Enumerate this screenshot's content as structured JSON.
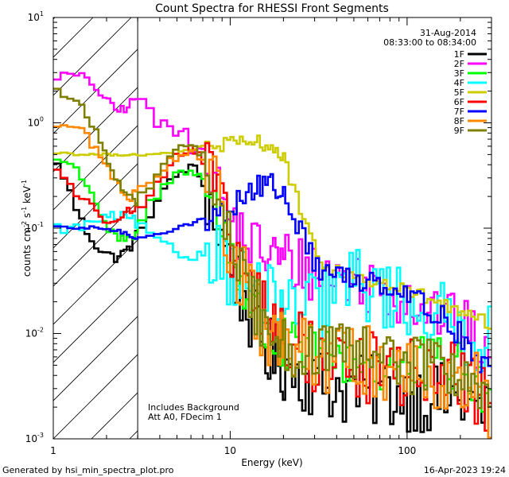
{
  "chart_data": {
    "type": "line",
    "title": "Count Spectra for RHESSI Front Segments",
    "xlabel": "Energy (keV)",
    "ylabel_parts": [
      "counts cm",
      "-2",
      " s",
      "-1",
      " keV",
      "-1"
    ],
    "xscale": "log",
    "yscale": "log",
    "xlim": [
      1,
      300
    ],
    "ylim": [
      0.001,
      10
    ],
    "x_ticks": [
      {
        "value": 1,
        "label": "1"
      },
      {
        "value": 10,
        "label": "10"
      },
      {
        "value": 100,
        "label": "100"
      }
    ],
    "y_ticks": [
      {
        "value": 0.001,
        "base": "10",
        "exp": "-3"
      },
      {
        "value": 0.01,
        "base": "10",
        "exp": "-2"
      },
      {
        "value": 0.1,
        "base": "10",
        "exp": "-1"
      },
      {
        "value": 1,
        "base": "10",
        "exp": "0"
      },
      {
        "value": 10,
        "base": "10",
        "exp": "1"
      }
    ],
    "hatched_region_max_energy": 3,
    "date": "31-Aug-2014",
    "time_range": "08:33:00 to 08:34:00",
    "annotations": [
      "Includes Background",
      "Att A0, FDecim 1"
    ],
    "legend_position": "top-right",
    "series": [
      {
        "name": "1F",
        "color": "#000000",
        "noise": 0.35,
        "values": [
          [
            1.1,
            0.39
          ],
          [
            1.3,
            0.18
          ],
          [
            1.5,
            0.1
          ],
          [
            1.8,
            0.065
          ],
          [
            2.2,
            0.052
          ],
          [
            2.5,
            0.058
          ],
          [
            2.8,
            0.07
          ],
          [
            3.0,
            0.09
          ],
          [
            4.0,
            0.2
          ],
          [
            5.0,
            0.32
          ],
          [
            5.8,
            0.38
          ],
          [
            6.5,
            0.35
          ],
          [
            7.5,
            0.2
          ],
          [
            8.5,
            0.1
          ],
          [
            10,
            0.05
          ],
          [
            11,
            0.03
          ],
          [
            13,
            0.015
          ],
          [
            16,
            0.007
          ],
          [
            20,
            0.005
          ],
          [
            30,
            0.0035
          ],
          [
            40,
            0.003
          ],
          [
            60,
            0.0028
          ],
          [
            90,
            0.0027
          ],
          [
            120,
            0.0025
          ],
          [
            160,
            0.0024
          ],
          [
            220,
            0.0022
          ],
          [
            300,
            0.0015
          ]
        ]
      },
      {
        "name": "2F",
        "color": "#ff00ff",
        "noise": 0.3,
        "values": [
          [
            1.1,
            2.8
          ],
          [
            1.4,
            2.8
          ],
          [
            1.7,
            2.3
          ],
          [
            2.0,
            1.6
          ],
          [
            2.3,
            1.3
          ],
          [
            2.6,
            1.4
          ],
          [
            3.0,
            1.8
          ],
          [
            3.3,
            1.6
          ],
          [
            3.8,
            0.95
          ],
          [
            4.3,
            1.0
          ],
          [
            5.0,
            0.8
          ],
          [
            5.5,
            1.0
          ],
          [
            6.0,
            0.55
          ],
          [
            6.5,
            0.6
          ],
          [
            7.5,
            0.45
          ],
          [
            8.5,
            0.25
          ],
          [
            10,
            0.12
          ],
          [
            12,
            0.08
          ],
          [
            15,
            0.06
          ],
          [
            20,
            0.05
          ],
          [
            30,
            0.04
          ],
          [
            40,
            0.035
          ],
          [
            60,
            0.03
          ],
          [
            80,
            0.026
          ],
          [
            100,
            0.022
          ],
          [
            130,
            0.018
          ],
          [
            160,
            0.015
          ],
          [
            220,
            0.01
          ],
          [
            300,
            0.006
          ]
        ]
      },
      {
        "name": "3F",
        "color": "#00ff00",
        "noise": 0.3,
        "values": [
          [
            1.1,
            0.45
          ],
          [
            1.4,
            0.35
          ],
          [
            1.7,
            0.2
          ],
          [
            2.0,
            0.1
          ],
          [
            2.3,
            0.08
          ],
          [
            2.7,
            0.075
          ],
          [
            3.0,
            0.09
          ],
          [
            3.5,
            0.17
          ],
          [
            4.0,
            0.22
          ],
          [
            5.0,
            0.33
          ],
          [
            6.0,
            0.37
          ],
          [
            7.0,
            0.3
          ],
          [
            8.0,
            0.16
          ],
          [
            9.5,
            0.08
          ],
          [
            11,
            0.04
          ],
          [
            13,
            0.02
          ],
          [
            16,
            0.01
          ],
          [
            20,
            0.007
          ],
          [
            30,
            0.006
          ],
          [
            50,
            0.0055
          ],
          [
            80,
            0.005
          ],
          [
            120,
            0.0048
          ],
          [
            180,
            0.0045
          ],
          [
            250,
            0.0035
          ],
          [
            300,
            0.002
          ]
        ]
      },
      {
        "name": "4F",
        "color": "#00ffff",
        "noise": 0.35,
        "values": [
          [
            1.1,
            0.1
          ],
          [
            1.4,
            0.1
          ],
          [
            1.8,
            0.12
          ],
          [
            2.3,
            0.13
          ],
          [
            2.8,
            0.12
          ],
          [
            3.2,
            0.1
          ],
          [
            4.0,
            0.07
          ],
          [
            5.0,
            0.06
          ],
          [
            6.0,
            0.05
          ],
          [
            7.0,
            0.06
          ],
          [
            8.0,
            0.07
          ],
          [
            9.0,
            0.05
          ],
          [
            10,
            0.04
          ],
          [
            12,
            0.03
          ],
          [
            14,
            0.025
          ],
          [
            17,
            0.02
          ],
          [
            20,
            0.016
          ],
          [
            30,
            0.017
          ],
          [
            40,
            0.025
          ],
          [
            50,
            0.03
          ],
          [
            60,
            0.028
          ],
          [
            80,
            0.022
          ],
          [
            100,
            0.02
          ],
          [
            130,
            0.016
          ],
          [
            170,
            0.013
          ],
          [
            220,
            0.01
          ],
          [
            300,
            0.008
          ]
        ]
      },
      {
        "name": "5F",
        "color": "#cccc00",
        "noise": 0.08,
        "values": [
          [
            1.1,
            0.52
          ],
          [
            1.5,
            0.5
          ],
          [
            2.0,
            0.5
          ],
          [
            2.5,
            0.5
          ],
          [
            3.0,
            0.5
          ],
          [
            4.0,
            0.5
          ],
          [
            5.0,
            0.52
          ],
          [
            6.0,
            0.55
          ],
          [
            7.0,
            0.6
          ],
          [
            8.0,
            0.62
          ],
          [
            10,
            0.62
          ],
          [
            12,
            0.62
          ],
          [
            14,
            0.65
          ],
          [
            16,
            0.64
          ],
          [
            18,
            0.55
          ],
          [
            20,
            0.45
          ],
          [
            22,
            0.3
          ],
          [
            25,
            0.15
          ],
          [
            28,
            0.08
          ],
          [
            32,
            0.05
          ],
          [
            40,
            0.04
          ],
          [
            50,
            0.035
          ],
          [
            70,
            0.03
          ],
          [
            100,
            0.025
          ],
          [
            150,
            0.02
          ],
          [
            200,
            0.015
          ],
          [
            300,
            0.012
          ]
        ]
      },
      {
        "name": "6F",
        "color": "#ff0000",
        "noise": 0.35,
        "values": [
          [
            1.1,
            0.35
          ],
          [
            1.4,
            0.2
          ],
          [
            1.7,
            0.15
          ],
          [
            2.0,
            0.12
          ],
          [
            2.5,
            0.14
          ],
          [
            3.0,
            0.15
          ],
          [
            3.5,
            0.2
          ],
          [
            4.0,
            0.3
          ],
          [
            5.0,
            0.5
          ],
          [
            6.0,
            0.55
          ],
          [
            7.0,
            0.45
          ],
          [
            8.0,
            0.25
          ],
          [
            9.0,
            0.12
          ],
          [
            10,
            0.07
          ],
          [
            12,
            0.04
          ],
          [
            14,
            0.02
          ],
          [
            17,
            0.012
          ],
          [
            20,
            0.009
          ],
          [
            30,
            0.006
          ],
          [
            50,
            0.005
          ],
          [
            80,
            0.0045
          ],
          [
            120,
            0.004
          ],
          [
            180,
            0.0038
          ],
          [
            250,
            0.003
          ],
          [
            300,
            0.002
          ]
        ]
      },
      {
        "name": "7F",
        "color": "#0000ff",
        "noise": 0.12,
        "values": [
          [
            1.1,
            0.1
          ],
          [
            1.3,
            0.1
          ],
          [
            1.6,
            0.1
          ],
          [
            2.0,
            0.1
          ],
          [
            2.5,
            0.09
          ],
          [
            3.0,
            0.08
          ],
          [
            4.0,
            0.09
          ],
          [
            5.0,
            0.1
          ],
          [
            6.0,
            0.11
          ],
          [
            7.0,
            0.12
          ],
          [
            8.0,
            0.13
          ],
          [
            9.0,
            0.14
          ],
          [
            10,
            0.16
          ],
          [
            12,
            0.2
          ],
          [
            14,
            0.24
          ],
          [
            16,
            0.26
          ],
          [
            18,
            0.25
          ],
          [
            20,
            0.2
          ],
          [
            22,
            0.15
          ],
          [
            25,
            0.1
          ],
          [
            28,
            0.06
          ],
          [
            32,
            0.04
          ],
          [
            40,
            0.035
          ],
          [
            50,
            0.033
          ],
          [
            70,
            0.032
          ],
          [
            100,
            0.025
          ],
          [
            150,
            0.015
          ],
          [
            200,
            0.01
          ],
          [
            250,
            0.006
          ],
          [
            300,
            0.004
          ]
        ]
      },
      {
        "name": "8F",
        "color": "#ff8800",
        "noise": 0.35,
        "values": [
          [
            1.1,
            0.95
          ],
          [
            1.4,
            0.9
          ],
          [
            1.7,
            0.6
          ],
          [
            2.0,
            0.4
          ],
          [
            2.3,
            0.25
          ],
          [
            2.7,
            0.2
          ],
          [
            3.0,
            0.22
          ],
          [
            4.0,
            0.35
          ],
          [
            5.0,
            0.5
          ],
          [
            6.0,
            0.55
          ],
          [
            7.0,
            0.48
          ],
          [
            8.0,
            0.25
          ],
          [
            9.0,
            0.12
          ],
          [
            10,
            0.06
          ],
          [
            12,
            0.03
          ],
          [
            14,
            0.015
          ],
          [
            17,
            0.009
          ],
          [
            20,
            0.007
          ],
          [
            30,
            0.006
          ],
          [
            50,
            0.0055
          ],
          [
            80,
            0.005
          ],
          [
            120,
            0.0045
          ],
          [
            180,
            0.004
          ],
          [
            250,
            0.003
          ],
          [
            300,
            0.002
          ]
        ]
      },
      {
        "name": "9F",
        "color": "#808000",
        "noise": 0.3,
        "values": [
          [
            1.1,
            2.0
          ],
          [
            1.4,
            1.5
          ],
          [
            1.7,
            0.9
          ],
          [
            2.0,
            0.5
          ],
          [
            2.3,
            0.28
          ],
          [
            2.6,
            0.2
          ],
          [
            3.0,
            0.18
          ],
          [
            3.5,
            0.25
          ],
          [
            4.0,
            0.4
          ],
          [
            5.0,
            0.55
          ],
          [
            6.0,
            0.6
          ],
          [
            7.0,
            0.5
          ],
          [
            8.0,
            0.28
          ],
          [
            9.0,
            0.14
          ],
          [
            10,
            0.07
          ],
          [
            12,
            0.035
          ],
          [
            14,
            0.018
          ],
          [
            17,
            0.011
          ],
          [
            20,
            0.008
          ],
          [
            30,
            0.0065
          ],
          [
            50,
            0.006
          ],
          [
            80,
            0.0055
          ],
          [
            120,
            0.005
          ],
          [
            180,
            0.0045
          ],
          [
            250,
            0.0035
          ],
          [
            300,
            0.0025
          ]
        ]
      }
    ]
  },
  "footer": {
    "generated_by": "Generated by hsi_min_spectra_plot.pro",
    "timestamp": "16-Apr-2023 19:24"
  }
}
